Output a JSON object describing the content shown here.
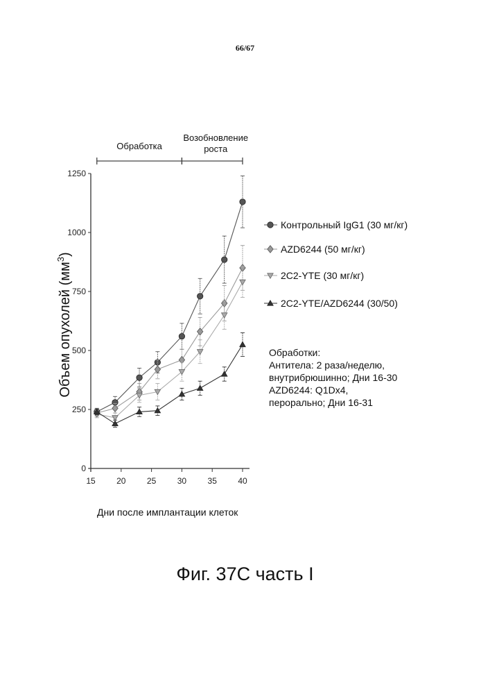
{
  "page_number": "66/67",
  "figure_caption": "Фиг. 37C часть I",
  "notes": [
    "Обработки:",
    "Антитела: 2 раза/неделю,",
    "внутрибрюшинно; Дни 16-30",
    "AZD6244: Q1Dx4,",
    "перорально; Дни 16-31"
  ],
  "chart_data": {
    "type": "line",
    "xlabel": "Дни после имплантации клеток",
    "ylabel": "Объем опухолей (мм",
    "ylabel_superscript": "3",
    "ylabel_close": ")",
    "xlim": [
      15,
      40
    ],
    "ylim": [
      0,
      1250
    ],
    "xticks": [
      15,
      20,
      25,
      30,
      35,
      40
    ],
    "yticks": [
      0,
      250,
      500,
      750,
      1000,
      1250
    ],
    "phases": [
      {
        "label": "Обработка",
        "x_start": 16,
        "x_end": 30
      },
      {
        "label_lines": [
          "Возобновление",
          "роста"
        ],
        "x_start": 30,
        "x_end": 40
      }
    ],
    "legend_position": "right",
    "series": [
      {
        "name": "Контрольный IgG1 (30 мг/кг)",
        "marker": "circle",
        "color": "#555555",
        "x": [
          16,
          19,
          23,
          26,
          30,
          33,
          37,
          40
        ],
        "y": [
          240,
          280,
          385,
          450,
          560,
          730,
          885,
          1130
        ],
        "err": [
          15,
          25,
          40,
          45,
          55,
          75,
          100,
          110
        ]
      },
      {
        "name": "AZD6244 (50 мг/кг)",
        "marker": "diamond",
        "color": "#999999",
        "x": [
          16,
          19,
          23,
          26,
          30,
          33,
          37,
          40
        ],
        "y": [
          235,
          255,
          325,
          420,
          460,
          580,
          700,
          850
        ],
        "err": [
          15,
          20,
          35,
          40,
          45,
          60,
          75,
          95
        ]
      },
      {
        "name": "2C2-YTE (30 мг/кг)",
        "marker": "triangle-down",
        "color": "#aaaaaa",
        "x": [
          16,
          19,
          23,
          26,
          30,
          33,
          37,
          40
        ],
        "y": [
          230,
          215,
          310,
          325,
          410,
          495,
          650,
          790
        ],
        "err": [
          15,
          20,
          30,
          35,
          40,
          50,
          60,
          65
        ]
      },
      {
        "name": "2C2-YTE/AZD6244 (30/50)",
        "marker": "triangle-up",
        "color": "#333333",
        "x": [
          16,
          19,
          23,
          26,
          30,
          33,
          37,
          40
        ],
        "y": [
          240,
          190,
          240,
          245,
          315,
          340,
          400,
          525
        ],
        "err": [
          12,
          15,
          20,
          20,
          25,
          30,
          30,
          50
        ]
      }
    ]
  }
}
